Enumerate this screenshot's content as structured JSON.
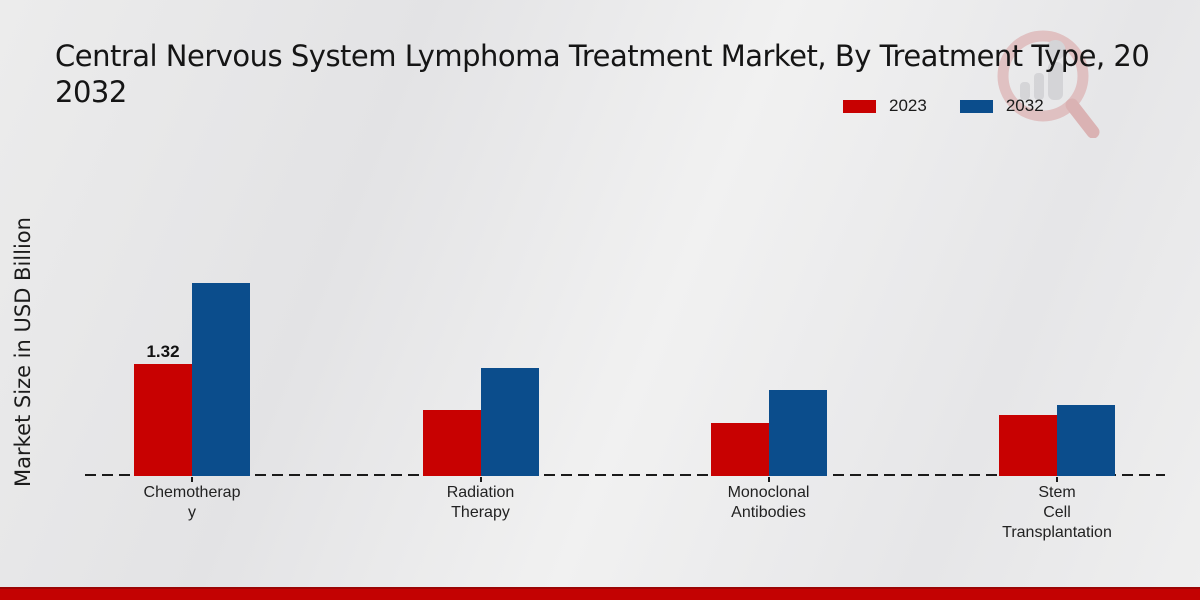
{
  "title": {
    "line1": "Central Nervous System Lymphoma Treatment Market, By Treatment Type, 20",
    "line2": "2032"
  },
  "y_axis_label": "Market Size in USD Billion",
  "legend": [
    {
      "label": "2023",
      "color": "#c80101"
    },
    {
      "label": "2032",
      "color": "#0b4d8c"
    }
  ],
  "watermark": {
    "name": "market-research-logo",
    "ring_color": "#d89a9a",
    "bar_color": "#c2c2c6",
    "handle_color": "#cf7f7f"
  },
  "colors": {
    "series_2023": "#c80101",
    "series_2032": "#0b4d8c",
    "axis": "#1a1a1a",
    "bottom_band": "#c30202",
    "background": "#eaeaea"
  },
  "chart_data": {
    "type": "bar",
    "title": "Central Nervous System Lymphoma Treatment Market, By Treatment Type, 2032",
    "ylabel": "Market Size in USD Billion",
    "categories": [
      "Chemotherapy",
      "Radiation Therapy",
      "Monoclonal Antibodies",
      "Stem Cell Transplantation"
    ],
    "category_display": [
      "Chemotherap\ny",
      "Radiation\nTherapy",
      "Monoclonal\nAntibodies",
      "Stem\nCell\nTransplantation"
    ],
    "series": [
      {
        "name": "2023",
        "color": "#c80101",
        "values": [
          1.32,
          0.78,
          0.62,
          0.72
        ]
      },
      {
        "name": "2032",
        "color": "#0b4d8c",
        "values": [
          2.27,
          1.27,
          1.01,
          0.84
        ]
      }
    ],
    "value_labels": [
      {
        "series": "2023",
        "category": "Chemotherapy",
        "text": "1.32"
      }
    ],
    "ylim": [
      0,
      2.5
    ],
    "grid": false,
    "axis_style": "dashed-baseline-only",
    "legend_position": "top-right"
  }
}
